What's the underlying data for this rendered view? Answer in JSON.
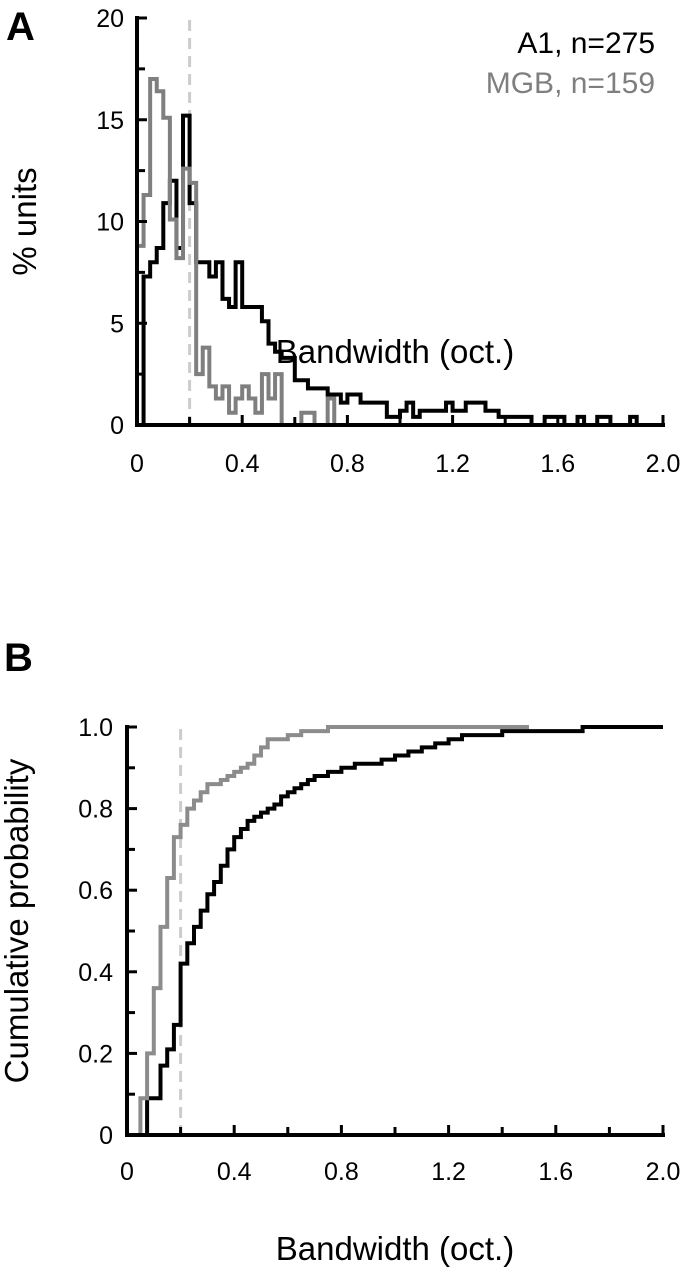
{
  "chart_data": [
    {
      "panel": "A",
      "type": "line",
      "drawstyle": "step-histogram",
      "xlabel": "Bandwidth (oct.)",
      "ylabel": "% units",
      "xlim": [
        0,
        2.0
      ],
      "ylim": [
        0,
        20
      ],
      "xticks": [
        "0",
        "0.4",
        "0.8",
        "1.2",
        "1.6",
        "2.0"
      ],
      "yticks": [
        "0",
        "5",
        "10",
        "15",
        "20"
      ],
      "legend": [
        "A1, n=275",
        "MGB, n=159"
      ],
      "reference_line": {
        "x": 0.2,
        "style": "dashed",
        "color": "#cccccc"
      },
      "bin_width": 0.025,
      "series": [
        {
          "name": "A1, n=275",
          "color": "#000000",
          "bin_start": 0.025,
          "values": [
            7.3,
            8.0,
            8.7,
            10.9,
            12.0,
            8.7,
            15.2,
            10.9,
            8.0,
            8.0,
            7.3,
            8.0,
            6.2,
            5.8,
            8.0,
            5.8,
            5.8,
            5.8,
            5.1,
            4.0,
            3.6,
            3.3,
            3.3,
            2.2,
            2.2,
            1.8,
            1.8,
            1.8,
            1.5,
            1.5,
            1.1,
            1.5,
            1.5,
            1.1,
            1.1,
            1.1,
            1.1,
            0.4,
            0.4,
            0.7,
            1.1,
            0.4,
            0.7,
            0.7,
            0.7,
            0.7,
            1.1,
            0.7,
            0.7,
            1.1,
            1.1,
            1.1,
            0.7,
            0.7,
            0.4,
            0.4,
            0.4,
            0.4,
            0.4,
            0.0,
            0.0,
            0.4,
            0.4,
            0.4,
            0.0,
            0.0,
            0.4,
            0.0,
            0.0,
            0.4,
            0.4,
            0.0,
            0.0,
            0.0,
            0.4,
            0.0
          ]
        },
        {
          "name": "MGB, n=159",
          "color": "#7f7f7f",
          "bin_start": 0,
          "values": [
            8.8,
            11.3,
            17.0,
            16.4,
            15.1,
            10.1,
            8.2,
            12.6,
            11.9,
            2.5,
            3.8,
            1.9,
            1.3,
            1.9,
            0.6,
            1.3,
            1.9,
            1.3,
            0.6,
            2.5,
            1.3,
            2.5,
            0.0,
            0.0,
            0.0,
            0.6,
            0.6,
            0.0,
            0.0,
            1.3
          ]
        }
      ]
    },
    {
      "panel": "B",
      "type": "line",
      "drawstyle": "step",
      "xlabel": "Bandwidth (oct.)",
      "ylabel": "Cumulative probability",
      "xlim": [
        0,
        2.0
      ],
      "ylim": [
        0,
        1.0
      ],
      "xticks": [
        "0",
        "0.4",
        "0.8",
        "1.2",
        "1.6",
        "2.0"
      ],
      "yticks": [
        "0",
        "0.2",
        "0.4",
        "0.6",
        "0.8",
        "1.0"
      ],
      "reference_line": {
        "x": 0.2,
        "style": "dashed",
        "color": "#cccccc"
      },
      "series": [
        {
          "name": "A1",
          "color": "#000000",
          "x": [
            0.05,
            0.075,
            0.1,
            0.125,
            0.15,
            0.175,
            0.2,
            0.225,
            0.25,
            0.275,
            0.3,
            0.325,
            0.35,
            0.375,
            0.4,
            0.425,
            0.45,
            0.475,
            0.5,
            0.525,
            0.55,
            0.575,
            0.6,
            0.625,
            0.65,
            0.675,
            0.7,
            0.725,
            0.75,
            0.775,
            0.8,
            0.85,
            0.9,
            0.95,
            1.0,
            1.05,
            1.1,
            1.15,
            1.2,
            1.25,
            1.3,
            1.35,
            1.4,
            1.5,
            1.6,
            1.7,
            1.8,
            1.9,
            2.0
          ],
          "y": [
            0.0,
            0.09,
            0.09,
            0.17,
            0.21,
            0.27,
            0.42,
            0.47,
            0.51,
            0.55,
            0.59,
            0.62,
            0.66,
            0.7,
            0.73,
            0.75,
            0.77,
            0.78,
            0.79,
            0.8,
            0.81,
            0.83,
            0.84,
            0.85,
            0.86,
            0.87,
            0.88,
            0.88,
            0.89,
            0.89,
            0.9,
            0.91,
            0.91,
            0.92,
            0.93,
            0.94,
            0.95,
            0.96,
            0.97,
            0.98,
            0.98,
            0.98,
            0.99,
            0.99,
            0.99,
            1.0,
            1.0,
            1.0,
            1.0
          ]
        },
        {
          "name": "MGB",
          "color": "#8c8c8c",
          "x": [
            0.0,
            0.025,
            0.05,
            0.075,
            0.1,
            0.125,
            0.15,
            0.175,
            0.2,
            0.225,
            0.25,
            0.275,
            0.3,
            0.325,
            0.35,
            0.375,
            0.4,
            0.425,
            0.45,
            0.475,
            0.5,
            0.525,
            0.55,
            0.6,
            0.65,
            0.7,
            0.75,
            1.0,
            1.5
          ],
          "y": [
            0.0,
            0.0,
            0.09,
            0.2,
            0.36,
            0.51,
            0.63,
            0.73,
            0.76,
            0.8,
            0.82,
            0.84,
            0.86,
            0.86,
            0.87,
            0.88,
            0.89,
            0.9,
            0.91,
            0.93,
            0.95,
            0.97,
            0.97,
            0.98,
            0.99,
            0.99,
            1.0,
            1.0,
            1.0
          ]
        }
      ]
    }
  ],
  "panel_letters": [
    "A",
    "B"
  ]
}
